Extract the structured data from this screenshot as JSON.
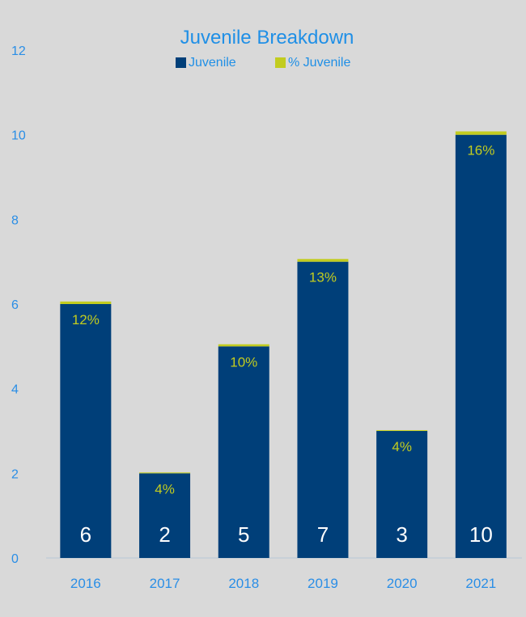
{
  "chart_data": {
    "type": "bar",
    "title": "Juvenile Breakdown",
    "legend": {
      "placement": "top-center"
    },
    "categories": [
      "2016",
      "2017",
      "2018",
      "2019",
      "2020",
      "2021"
    ],
    "series": [
      {
        "name": "Juvenile",
        "values": [
          6,
          2,
          5,
          7,
          3,
          10
        ],
        "value_labels": [
          "6",
          "2",
          "5",
          "7",
          "3",
          "10"
        ]
      },
      {
        "name": "% Juvenile",
        "values": [
          0.12,
          0.04,
          0.1,
          0.13,
          0.04,
          0.16
        ],
        "value_labels": [
          "12%",
          "4%",
          "10%",
          "13%",
          "4%",
          "16%"
        ]
      }
    ],
    "stacked": true,
    "ylim": [
      0,
      12
    ],
    "yticks": [
      "0",
      "2",
      "4",
      "6",
      "8",
      "10",
      "12"
    ],
    "grid": false,
    "colors": {
      "juvenile": "#003f79",
      "pct_juvenile": "#c2cc1f",
      "axis_text": "#2a8ee6",
      "title": "#1f8fe6",
      "inner_label_light": "#ffffff",
      "inner_label_pct": "#c2cc1f",
      "background": "#d9d9d9",
      "axis_line": "#b8c6d8"
    }
  }
}
